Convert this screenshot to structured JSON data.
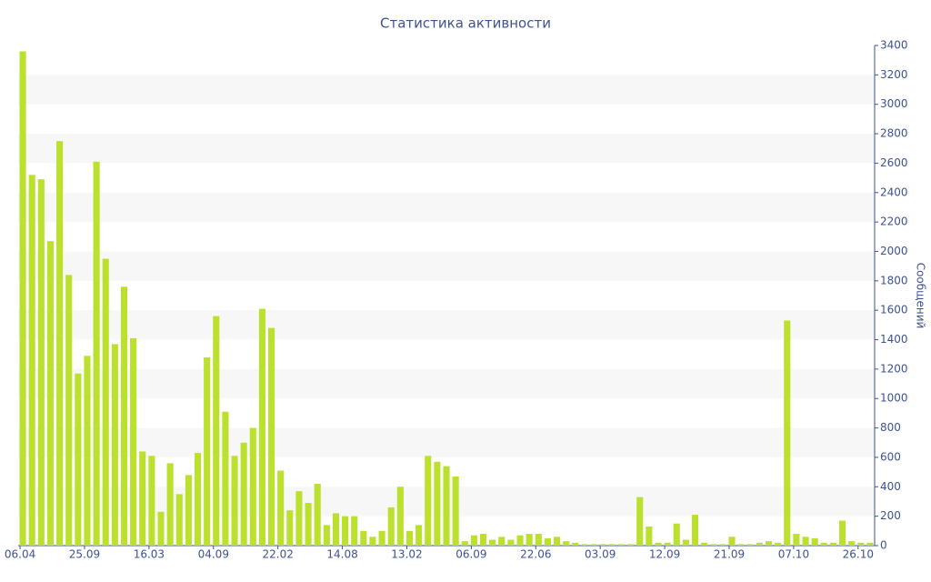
{
  "chart_data": {
    "type": "bar",
    "title": "Статистика активности",
    "y_label": "Сообщений",
    "categories": [
      "06.04",
      null,
      null,
      null,
      null,
      null,
      null,
      "25.09",
      null,
      null,
      null,
      null,
      null,
      null,
      "16.03",
      null,
      null,
      null,
      null,
      null,
      null,
      "04.09",
      null,
      null,
      null,
      null,
      null,
      null,
      "22.02",
      null,
      null,
      null,
      null,
      null,
      null,
      "14.08",
      null,
      null,
      null,
      null,
      null,
      null,
      "13.02",
      null,
      null,
      null,
      null,
      null,
      null,
      "06.09",
      null,
      null,
      null,
      null,
      null,
      null,
      "22.06",
      null,
      null,
      null,
      null,
      null,
      null,
      "03.09",
      null,
      null,
      null,
      null,
      null,
      null,
      "12.09",
      null,
      null,
      null,
      null,
      null,
      null,
      "21.09",
      null,
      null,
      null,
      null,
      null,
      null,
      "07.10",
      null,
      null,
      null,
      null,
      null,
      null,
      "26.10",
      null
    ],
    "values": [
      3360,
      2520,
      2490,
      2070,
      2750,
      1840,
      1170,
      1290,
      2610,
      1950,
      1370,
      1760,
      1410,
      640,
      610,
      230,
      560,
      350,
      480,
      630,
      1280,
      1560,
      910,
      610,
      700,
      800,
      1610,
      1480,
      510,
      240,
      370,
      290,
      420,
      140,
      220,
      200,
      200,
      100,
      60,
      100,
      260,
      400,
      100,
      140,
      610,
      570,
      540,
      470,
      30,
      70,
      80,
      40,
      60,
      40,
      70,
      80,
      80,
      50,
      60,
      30,
      20,
      10,
      10,
      10,
      10,
      10,
      10,
      330,
      130,
      20,
      20,
      150,
      40,
      210,
      20,
      10,
      10,
      60,
      10,
      10,
      20,
      30,
      20,
      1530,
      80,
      60,
      50,
      20,
      20,
      170,
      30,
      20,
      20
    ],
    "color": "#bbe02e",
    "ylim": [
      0,
      3400
    ],
    "yticks": [
      0,
      200,
      400,
      600,
      800,
      1000,
      1200,
      1400,
      1600,
      1800,
      2000,
      2200,
      2400,
      2600,
      2800,
      3000,
      3200,
      3400
    ],
    "y_axis_side": "right",
    "grid": "bands"
  }
}
